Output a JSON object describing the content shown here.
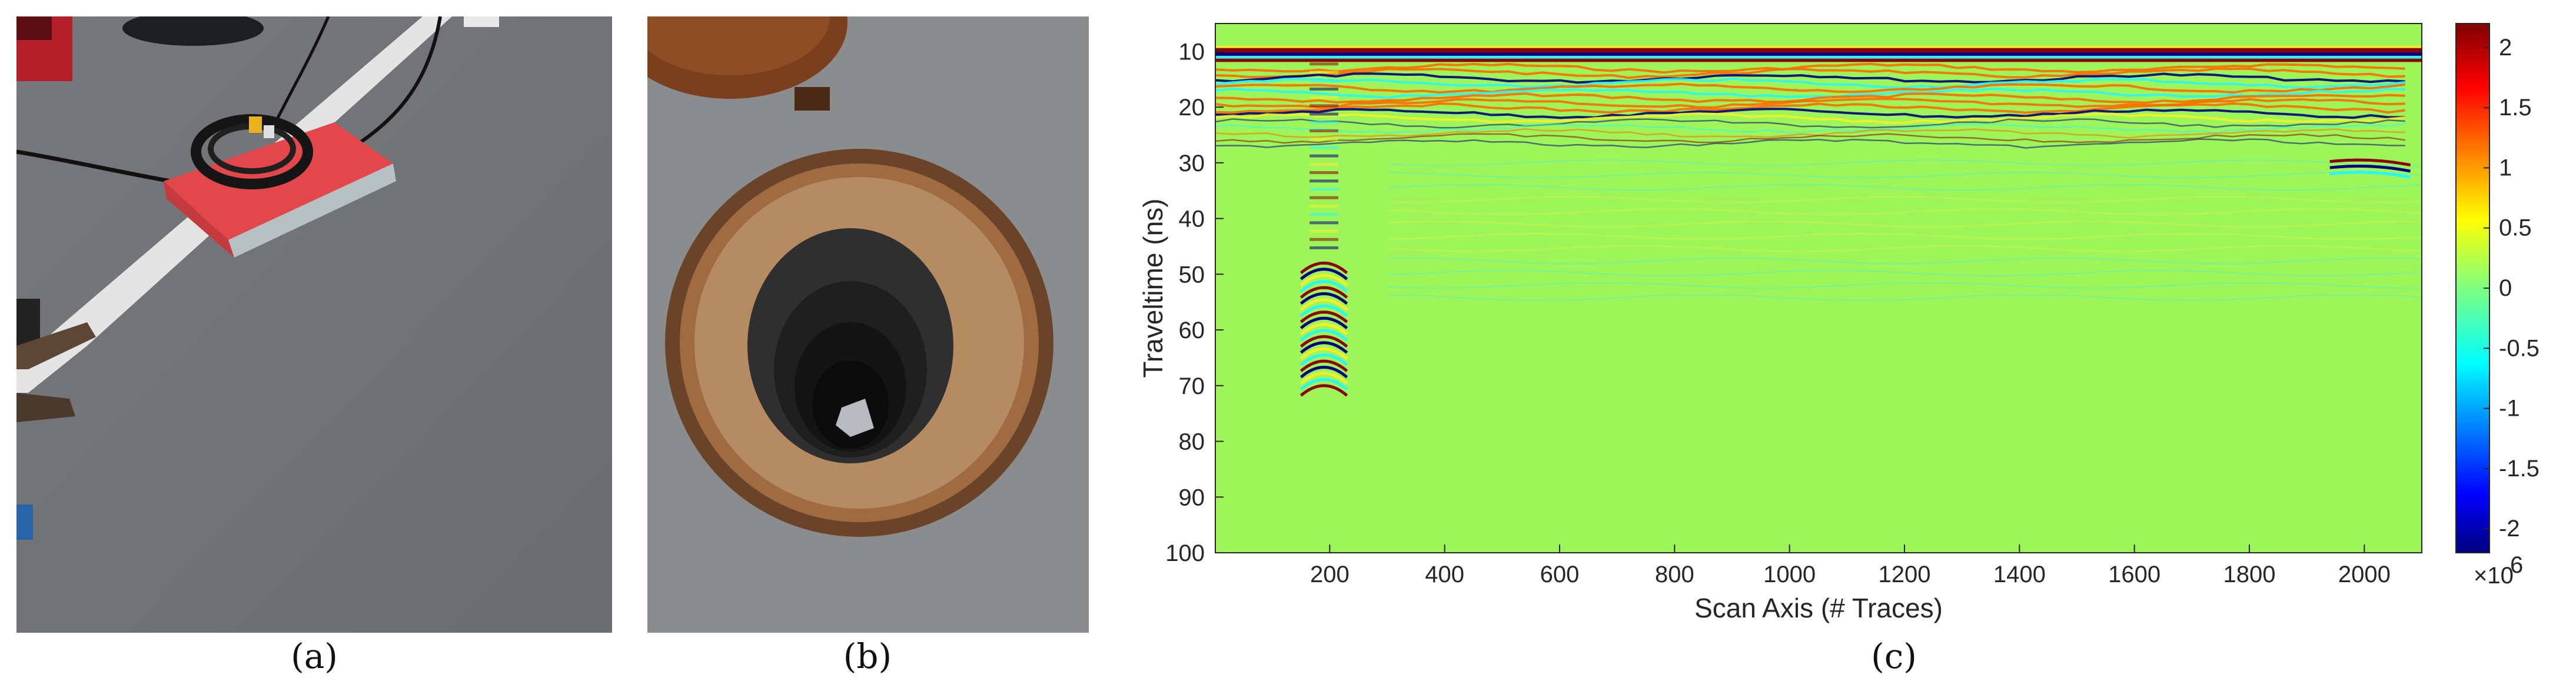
{
  "captions": {
    "a": "(a)",
    "b": "(b)",
    "c": "(c)"
  },
  "chart_data": {
    "type": "heatmap",
    "title": "",
    "xlabel": "Scan Axis (# Traces)",
    "ylabel": "Traveltime (ns)",
    "xlim": [
      1,
      2100
    ],
    "ylim": [
      100,
      5
    ],
    "y_reversed": true,
    "x_ticks": [
      200,
      400,
      600,
      800,
      1000,
      1200,
      1400,
      1600,
      1800,
      2000
    ],
    "y_ticks": [
      10,
      20,
      30,
      40,
      50,
      60,
      70,
      80,
      90,
      100
    ],
    "colormap": "jet",
    "colorbar": {
      "ticks": [
        "2",
        "1.5",
        "1",
        "0.5",
        "0",
        "-0.5",
        "-1",
        "-1.5",
        "-2"
      ],
      "multiplier": "×10",
      "exponent": "6",
      "limits": [
        -2.2,
        2.2
      ]
    },
    "features": [
      {
        "name": "direct-wave",
        "x_range": [
          1,
          2100
        ],
        "y_range": [
          9,
          12
        ]
      },
      {
        "name": "shallow-layer-reflections",
        "x_range": [
          1,
          2100
        ],
        "y_range": [
          13,
          28
        ]
      },
      {
        "name": "hyperbola-apex",
        "x": 190,
        "y_range": [
          48,
          70
        ]
      },
      {
        "name": "deep-reflection-right",
        "x_range": [
          1940,
          2080
        ],
        "y_range": [
          29,
          34
        ]
      }
    ],
    "colors": {
      "background": "#9ef55a",
      "deep_red": "#8c0000",
      "dark_blue": "#00007f",
      "cyan": "#2af7f5",
      "yellow": "#f2ef2a"
    }
  }
}
